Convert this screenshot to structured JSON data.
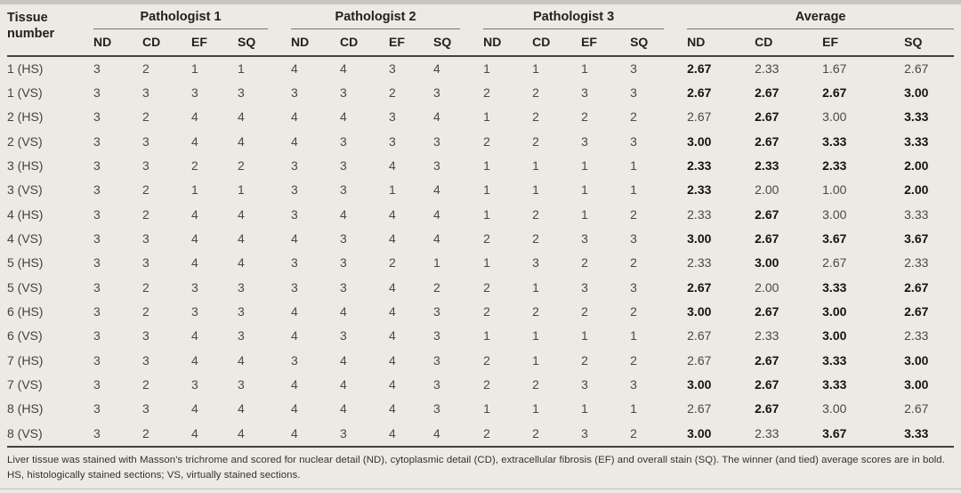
{
  "colors": {
    "background": "#eceae5",
    "dark_rule": "#43423e",
    "group_rule": "#76746f",
    "regular_text": "#4a4845",
    "bold_text": "#16150f"
  },
  "table": {
    "row_header": "Tissue number",
    "col_groups": [
      {
        "label": "Pathologist 1",
        "cols": [
          "ND",
          "CD",
          "EF",
          "SQ"
        ]
      },
      {
        "label": "Pathologist 2",
        "cols": [
          "ND",
          "CD",
          "EF",
          "SQ"
        ]
      },
      {
        "label": "Pathologist 3",
        "cols": [
          "ND",
          "CD",
          "EF",
          "SQ"
        ]
      },
      {
        "label": "Average",
        "cols": [
          "ND",
          "CD",
          "EF",
          "SQ"
        ]
      }
    ],
    "rows": [
      {
        "tissue": "1 (HS)",
        "p1": [
          3,
          2,
          1,
          1
        ],
        "p2": [
          4,
          4,
          3,
          4
        ],
        "p3": [
          1,
          1,
          1,
          3
        ],
        "avg": [
          "2.67",
          "2.33",
          "1.67",
          "2.67"
        ],
        "avg_bold": [
          true,
          false,
          false,
          false
        ]
      },
      {
        "tissue": "1 (VS)",
        "p1": [
          3,
          3,
          3,
          3
        ],
        "p2": [
          3,
          3,
          2,
          3
        ],
        "p3": [
          2,
          2,
          3,
          3
        ],
        "avg": [
          "2.67",
          "2.67",
          "2.67",
          "3.00"
        ],
        "avg_bold": [
          true,
          true,
          true,
          true
        ]
      },
      {
        "tissue": "2 (HS)",
        "p1": [
          3,
          2,
          4,
          4
        ],
        "p2": [
          4,
          4,
          3,
          4
        ],
        "p3": [
          1,
          2,
          2,
          2
        ],
        "avg": [
          "2.67",
          "2.67",
          "3.00",
          "3.33"
        ],
        "avg_bold": [
          false,
          true,
          false,
          true
        ]
      },
      {
        "tissue": "2 (VS)",
        "p1": [
          3,
          3,
          4,
          4
        ],
        "p2": [
          4,
          3,
          3,
          3
        ],
        "p3": [
          2,
          2,
          3,
          3
        ],
        "avg": [
          "3.00",
          "2.67",
          "3.33",
          "3.33"
        ],
        "avg_bold": [
          true,
          true,
          true,
          true
        ]
      },
      {
        "tissue": "3 (HS)",
        "p1": [
          3,
          3,
          2,
          2
        ],
        "p2": [
          3,
          3,
          4,
          3
        ],
        "p3": [
          1,
          1,
          1,
          1
        ],
        "avg": [
          "2.33",
          "2.33",
          "2.33",
          "2.00"
        ],
        "avg_bold": [
          true,
          true,
          true,
          true
        ]
      },
      {
        "tissue": "3 (VS)",
        "p1": [
          3,
          2,
          1,
          1
        ],
        "p2": [
          3,
          3,
          1,
          4
        ],
        "p3": [
          1,
          1,
          1,
          1
        ],
        "avg": [
          "2.33",
          "2.00",
          "1.00",
          "2.00"
        ],
        "avg_bold": [
          true,
          false,
          false,
          true
        ]
      },
      {
        "tissue": "4 (HS)",
        "p1": [
          3,
          2,
          4,
          4
        ],
        "p2": [
          3,
          4,
          4,
          4
        ],
        "p3": [
          1,
          2,
          1,
          2
        ],
        "avg": [
          "2.33",
          "2.67",
          "3.00",
          "3.33"
        ],
        "avg_bold": [
          false,
          true,
          false,
          false
        ]
      },
      {
        "tissue": "4 (VS)",
        "p1": [
          3,
          3,
          4,
          4
        ],
        "p2": [
          4,
          3,
          4,
          4
        ],
        "p3": [
          2,
          2,
          3,
          3
        ],
        "avg": [
          "3.00",
          "2.67",
          "3.67",
          "3.67"
        ],
        "avg_bold": [
          true,
          true,
          true,
          true
        ]
      },
      {
        "tissue": "5 (HS)",
        "p1": [
          3,
          3,
          4,
          4
        ],
        "p2": [
          3,
          3,
          2,
          1
        ],
        "p3": [
          1,
          3,
          2,
          2
        ],
        "avg": [
          "2.33",
          "3.00",
          "2.67",
          "2.33"
        ],
        "avg_bold": [
          false,
          true,
          false,
          false
        ]
      },
      {
        "tissue": "5 (VS)",
        "p1": [
          3,
          2,
          3,
          3
        ],
        "p2": [
          3,
          3,
          4,
          2
        ],
        "p3": [
          2,
          1,
          3,
          3
        ],
        "avg": [
          "2.67",
          "2.00",
          "3.33",
          "2.67"
        ],
        "avg_bold": [
          true,
          false,
          true,
          true
        ]
      },
      {
        "tissue": "6 (HS)",
        "p1": [
          3,
          2,
          3,
          3
        ],
        "p2": [
          4,
          4,
          4,
          3
        ],
        "p3": [
          2,
          2,
          2,
          2
        ],
        "avg": [
          "3.00",
          "2.67",
          "3.00",
          "2.67"
        ],
        "avg_bold": [
          true,
          true,
          true,
          true
        ]
      },
      {
        "tissue": "6 (VS)",
        "p1": [
          3,
          3,
          4,
          3
        ],
        "p2": [
          4,
          3,
          4,
          3
        ],
        "p3": [
          1,
          1,
          1,
          1
        ],
        "avg": [
          "2.67",
          "2.33",
          "3.00",
          "2.33"
        ],
        "avg_bold": [
          false,
          false,
          true,
          false
        ]
      },
      {
        "tissue": "7 (HS)",
        "p1": [
          3,
          3,
          4,
          4
        ],
        "p2": [
          3,
          4,
          4,
          3
        ],
        "p3": [
          2,
          1,
          2,
          2
        ],
        "avg": [
          "2.67",
          "2.67",
          "3.33",
          "3.00"
        ],
        "avg_bold": [
          false,
          true,
          true,
          true
        ]
      },
      {
        "tissue": "7 (VS)",
        "p1": [
          3,
          2,
          3,
          3
        ],
        "p2": [
          4,
          4,
          4,
          3
        ],
        "p3": [
          2,
          2,
          3,
          3
        ],
        "avg": [
          "3.00",
          "2.67",
          "3.33",
          "3.00"
        ],
        "avg_bold": [
          true,
          true,
          true,
          true
        ]
      },
      {
        "tissue": "8 (HS)",
        "p1": [
          3,
          3,
          4,
          4
        ],
        "p2": [
          4,
          4,
          4,
          3
        ],
        "p3": [
          1,
          1,
          1,
          1
        ],
        "avg": [
          "2.67",
          "2.67",
          "3.00",
          "2.67"
        ],
        "avg_bold": [
          false,
          true,
          false,
          false
        ]
      },
      {
        "tissue": "8 (VS)",
        "p1": [
          3,
          2,
          4,
          4
        ],
        "p2": [
          4,
          3,
          4,
          4
        ],
        "p3": [
          2,
          2,
          3,
          2
        ],
        "avg": [
          "3.00",
          "2.33",
          "3.67",
          "3.33"
        ],
        "avg_bold": [
          true,
          false,
          true,
          true
        ]
      }
    ],
    "footnote": "Liver tissue was stained with Masson's trichrome and scored for nuclear detail (ND), cytoplasmic detail (CD), extracellular fibrosis (EF) and overall stain (SQ). The winner (and tied) average scores are in bold. HS, histologically stained sections; VS, virtually stained sections."
  }
}
